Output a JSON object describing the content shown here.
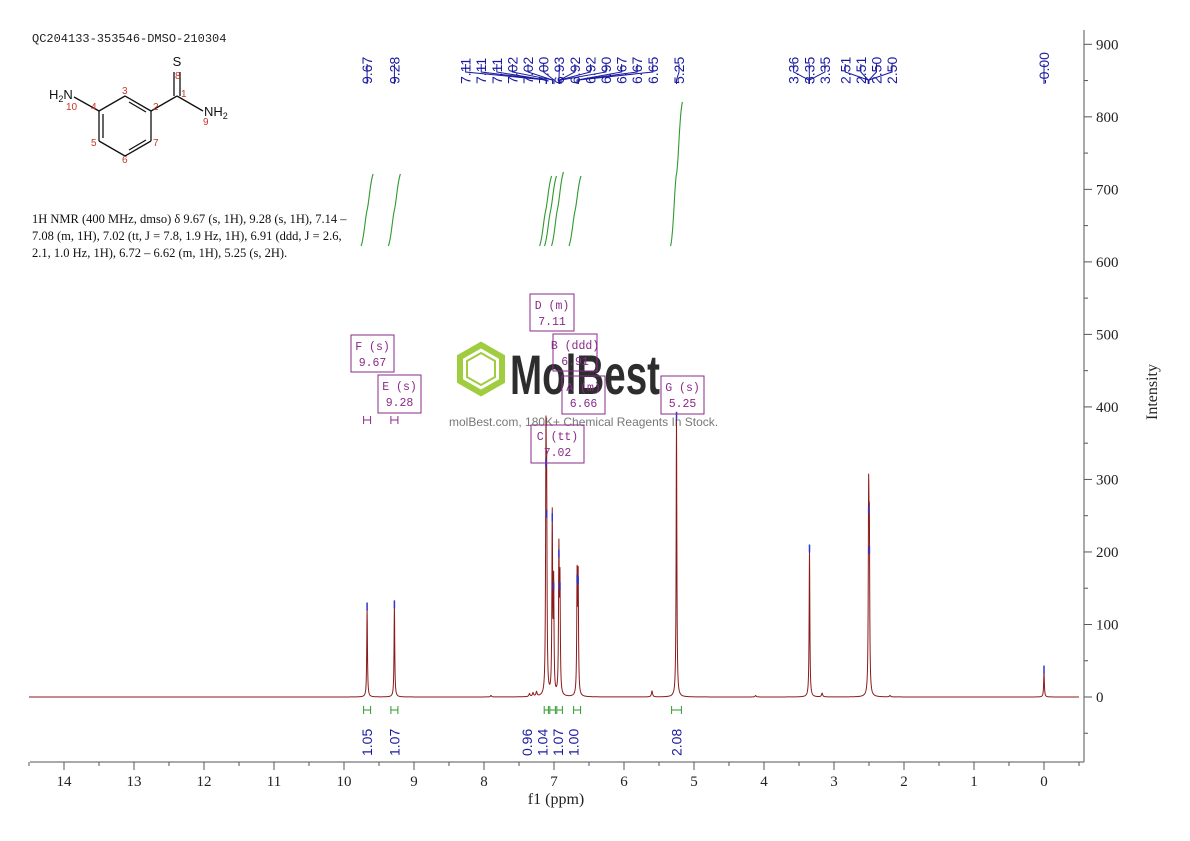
{
  "sample_id": "QC204133-353546-DMSO-210304",
  "nmr_description": "1H NMR (400 MHz, dmso) δ 9.67 (s, 1H), 9.28 (s, 1H), 7.14 – 7.08 (m, 1H), 7.02 (tt, J = 7.8, 1.9 Hz, 1H), 6.91 (ddd, J = 2.6, 2.1, 1.0 Hz, 1H), 6.72 – 6.62 (m, 1H), 5.25 (s, 2H).",
  "structure": {
    "labels": {
      "s": "S",
      "nh2_left": "H2N",
      "nh2_right": "NH2"
    },
    "atom_numbers": [
      "1",
      "2",
      "3",
      "4",
      "5",
      "6",
      "7",
      "8",
      "9",
      "10"
    ]
  },
  "watermark": {
    "brand": "MolBest",
    "tagline": "molBest.com, 180K+ Chemical Reagents In Stock."
  },
  "colors": {
    "spectrum": "#8b1a1a",
    "peak_labels": "#1a1aa0",
    "integral_curve": "#2e9a2e",
    "multiplet_box": "#8a2a8a",
    "watermark_green": "#8fc31f"
  },
  "chart_data": {
    "type": "line",
    "xlabel": "f1 (ppm)",
    "ylabel": "Intensity",
    "xlim": [
      14.5,
      -0.5
    ],
    "ylim": [
      -90,
      920
    ],
    "x_ticks": [
      14,
      13,
      12,
      11,
      10,
      9,
      8,
      7,
      6,
      5,
      4,
      3,
      2,
      1,
      0
    ],
    "y_ticks": [
      0,
      100,
      200,
      300,
      400,
      500,
      600,
      700,
      800,
      900
    ],
    "peaks": [
      {
        "ppm": 9.67,
        "height": 122
      },
      {
        "ppm": 9.28,
        "height": 125
      },
      {
        "ppm": 7.115,
        "height": 320
      },
      {
        "ppm": 7.105,
        "height": 250
      },
      {
        "ppm": 7.025,
        "height": 245
      },
      {
        "ppm": 7.005,
        "height": 150
      },
      {
        "ppm": 6.93,
        "height": 195
      },
      {
        "ppm": 6.915,
        "height": 150
      },
      {
        "ppm": 6.67,
        "height": 160
      },
      {
        "ppm": 6.655,
        "height": 158
      },
      {
        "ppm": 5.25,
        "height": 385
      },
      {
        "ppm": 3.35,
        "height": 202
      },
      {
        "ppm": 2.505,
        "height": 255
      },
      {
        "ppm": 2.495,
        "height": 200
      },
      {
        "ppm": 0.0,
        "height": 35
      }
    ],
    "peak_labels": [
      {
        "label": "9.67",
        "ppm": 9.67
      },
      {
        "label": "9.28",
        "ppm": 9.28
      },
      {
        "label": "7.11",
        "ppm": 7.11
      },
      {
        "label": "7.11",
        "ppm": 7.11
      },
      {
        "label": "7.11",
        "ppm": 7.11
      },
      {
        "label": "7.02",
        "ppm": 7.02
      },
      {
        "label": "7.02",
        "ppm": 7.02
      },
      {
        "label": "7.00",
        "ppm": 7.0
      },
      {
        "label": "6.93",
        "ppm": 6.93
      },
      {
        "label": "6.92",
        "ppm": 6.92
      },
      {
        "label": "6.92",
        "ppm": 6.92
      },
      {
        "label": "6.90",
        "ppm": 6.9
      },
      {
        "label": "6.67",
        "ppm": 6.67
      },
      {
        "label": "6.67",
        "ppm": 6.67
      },
      {
        "label": "6.65",
        "ppm": 6.65
      },
      {
        "label": "5.25",
        "ppm": 5.25
      },
      {
        "label": "3.36",
        "ppm": 3.36
      },
      {
        "label": "3.35",
        "ppm": 3.35
      },
      {
        "label": "3.35",
        "ppm": 3.35
      },
      {
        "label": "2.51",
        "ppm": 2.51
      },
      {
        "label": "2.51",
        "ppm": 2.51
      },
      {
        "label": "2.50",
        "ppm": 2.5
      },
      {
        "label": "2.50",
        "ppm": 2.5
      },
      {
        "label": "-0.00",
        "ppm": 0.0
      }
    ],
    "integrals": [
      {
        "value": "1.05",
        "from": 9.72,
        "to": 9.62
      },
      {
        "value": "1.07",
        "from": 9.33,
        "to": 9.23
      },
      {
        "value": "0.96",
        "from": 7.14,
        "to": 7.08
      },
      {
        "value": "1.04",
        "from": 7.06,
        "to": 6.98
      },
      {
        "value": "1.07",
        "from": 6.96,
        "to": 6.88
      },
      {
        "value": "1.00",
        "from": 6.72,
        "to": 6.62
      },
      {
        "value": "2.08",
        "from": 5.32,
        "to": 5.18
      }
    ],
    "multiplets": [
      {
        "name": "F (s)",
        "shift": "9.67"
      },
      {
        "name": "E (s)",
        "shift": "9.28"
      },
      {
        "name": "D (m)",
        "shift": "7.11"
      },
      {
        "name": "B (ddd)",
        "shift": "6.91"
      },
      {
        "name": "A (m)",
        "shift": "6.66"
      },
      {
        "name": "C (tt)",
        "shift": "7.02"
      },
      {
        "name": "G (s)",
        "shift": "5.25"
      }
    ]
  }
}
